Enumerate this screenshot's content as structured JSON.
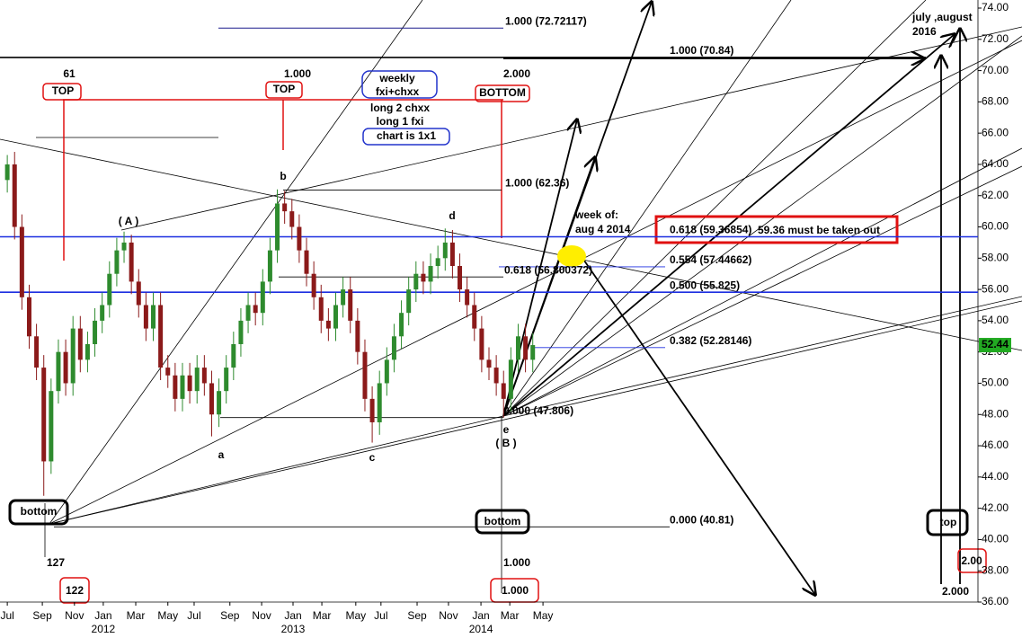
{
  "chart_data": {
    "type": "candlestick",
    "up_color": "#2e8b2e",
    "down_color": "#8b1a1a",
    "x": [
      2,
      4,
      6,
      8,
      10,
      12,
      14,
      16,
      18,
      20,
      22,
      24,
      26,
      28,
      30,
      32,
      34,
      36,
      38,
      40,
      42,
      44,
      46,
      48,
      50,
      52,
      54,
      56,
      58,
      60,
      62,
      64,
      66,
      68,
      70,
      72,
      74,
      76,
      78,
      80,
      82,
      84,
      86,
      88,
      90,
      92,
      94,
      96,
      98,
      100,
      102,
      104,
      106,
      108,
      110,
      112,
      114,
      116,
      118,
      120,
      122,
      124,
      126,
      128,
      130,
      132,
      134,
      136,
      138,
      140,
      142,
      144,
      146
    ],
    "open": [
      63.0,
      64.0,
      60.0,
      55.5,
      53.0,
      51.0,
      45.0,
      49.5,
      52.0,
      50.0,
      53.5,
      51.5,
      52.5,
      54.0,
      55.0,
      57.0,
      58.5,
      59.0,
      56.5,
      55.0,
      53.5,
      55.0,
      51.0,
      50.5,
      49.0,
      50.5,
      49.5,
      51.0,
      50.0,
      48.0,
      49.5,
      51.0,
      52.5,
      54.0,
      55.0,
      54.5,
      56.5,
      58.5,
      61.5,
      61.0,
      60.0,
      58.5,
      57.0,
      55.5,
      54.0,
      53.5,
      55.0,
      56.0,
      54.0,
      52.0,
      49.0,
      47.5,
      50.0,
      51.5,
      53.0,
      54.5,
      56.0,
      57.0,
      56.5,
      57.5,
      58.0,
      59.0,
      57.5,
      56.0,
      55.0,
      53.5,
      51.5,
      51.0,
      50.0,
      49.0,
      51.5,
      53.0,
      51.5
    ],
    "high": [
      64.6,
      64.8,
      60.8,
      56.3,
      53.8,
      51.8,
      50.3,
      52.8,
      52.8,
      54.3,
      54.3,
      53.3,
      54.8,
      55.8,
      57.8,
      59.3,
      59.7,
      59.5,
      57.3,
      55.8,
      55.8,
      55.8,
      51.8,
      51.3,
      51.3,
      51.3,
      51.8,
      51.8,
      50.8,
      50.3,
      51.8,
      53.3,
      54.8,
      55.8,
      55.8,
      57.3,
      59.3,
      62.4,
      62.3,
      61.8,
      60.8,
      59.3,
      57.8,
      56.3,
      54.8,
      55.8,
      56.8,
      56.8,
      54.8,
      52.8,
      49.8,
      50.8,
      52.3,
      53.8,
      55.3,
      56.8,
      57.8,
      57.8,
      58.3,
      58.8,
      59.9,
      59.8,
      58.3,
      56.8,
      55.8,
      54.3,
      52.3,
      51.8,
      50.8,
      52.3,
      53.8,
      53.8,
      53.2
    ],
    "low": [
      62.2,
      59.2,
      54.7,
      52.2,
      50.2,
      42.8,
      44.2,
      48.7,
      49.2,
      49.2,
      50.7,
      50.7,
      51.7,
      53.2,
      54.2,
      56.2,
      57.7,
      55.7,
      54.2,
      52.7,
      52.7,
      50.2,
      49.7,
      48.2,
      48.2,
      48.7,
      48.7,
      49.2,
      46.6,
      47.2,
      48.7,
      50.2,
      51.7,
      53.2,
      53.7,
      53.7,
      55.7,
      57.7,
      60.2,
      59.2,
      57.7,
      56.2,
      54.7,
      53.2,
      52.7,
      52.7,
      54.2,
      53.2,
      51.2,
      48.2,
      46.2,
      46.7,
      49.2,
      50.7,
      52.2,
      53.7,
      55.2,
      55.7,
      55.7,
      56.7,
      57.2,
      56.7,
      55.2,
      54.2,
      52.7,
      50.7,
      50.2,
      49.2,
      47.8,
      48.2,
      50.7,
      50.7,
      50.7
    ],
    "close": [
      64.0,
      60.0,
      55.5,
      53.0,
      51.0,
      45.0,
      49.5,
      52.0,
      50.0,
      53.5,
      51.5,
      52.5,
      54.0,
      55.0,
      57.0,
      58.5,
      59.0,
      56.5,
      55.0,
      53.5,
      55.0,
      51.0,
      50.5,
      49.0,
      50.5,
      49.5,
      51.0,
      50.0,
      48.0,
      49.5,
      51.0,
      52.5,
      54.0,
      55.0,
      54.5,
      56.5,
      58.5,
      61.5,
      61.0,
      60.0,
      58.5,
      57.0,
      55.5,
      54.0,
      53.5,
      55.0,
      56.0,
      54.0,
      52.0,
      49.0,
      47.5,
      50.0,
      51.5,
      53.0,
      54.5,
      56.0,
      57.0,
      56.5,
      57.5,
      58.0,
      59.0,
      57.5,
      56.0,
      55.0,
      53.5,
      51.5,
      51.0,
      50.0,
      49.0,
      51.5,
      53.0,
      51.5,
      52.44
    ],
    "xlim": [
      0,
      268
    ],
    "ylim": [
      36,
      74
    ],
    "xticks": [
      {
        "value": 2,
        "label": "Jul"
      },
      {
        "value": 11.6,
        "label": "Sep"
      },
      {
        "value": 20.4,
        "label": "Nov"
      },
      {
        "value": 28.3,
        "label": "Jan"
      },
      {
        "value": 37.2,
        "label": "Mar"
      },
      {
        "value": 46,
        "label": "May"
      },
      {
        "value": 53.2,
        "label": "Jul"
      },
      {
        "value": 63,
        "label": "Sep"
      },
      {
        "value": 71.7,
        "label": "Nov"
      },
      {
        "value": 80.3,
        "label": "Jan"
      },
      {
        "value": 88.2,
        "label": "Mar"
      },
      {
        "value": 97.5,
        "label": "May"
      },
      {
        "value": 104.4,
        "label": "Jul"
      },
      {
        "value": 114.3,
        "label": "Sep"
      },
      {
        "value": 122.9,
        "label": "Nov"
      },
      {
        "value": 131.8,
        "label": "Jan"
      },
      {
        "value": 139.7,
        "label": "Mar"
      },
      {
        "value": 148.8,
        "label": "May"
      }
    ],
    "x_year_labels": [
      {
        "value": 28.3,
        "label": "2012"
      },
      {
        "value": 80.3,
        "label": "2013"
      },
      {
        "value": 131.8,
        "label": "2014"
      }
    ],
    "yticks": [
      {
        "value": 36,
        "label": "36.00"
      },
      {
        "value": 38,
        "label": "38.00"
      },
      {
        "value": 40,
        "label": "40.00"
      },
      {
        "value": 42,
        "label": "42.00"
      },
      {
        "value": 44,
        "label": "44.00"
      },
      {
        "value": 46,
        "label": "46.00"
      },
      {
        "value": 48,
        "label": "48.00"
      },
      {
        "value": 50,
        "label": "50.00"
      },
      {
        "value": 52,
        "label": "52.00"
      },
      {
        "value": 54,
        "label": "54.00"
      },
      {
        "value": 56,
        "label": "56.00"
      },
      {
        "value": 58,
        "label": "58.00"
      },
      {
        "value": 60,
        "label": "60.00"
      },
      {
        "value": 62,
        "label": "62.00"
      },
      {
        "value": 64,
        "label": "64.00"
      },
      {
        "value": 66,
        "label": "66.00"
      },
      {
        "value": 68,
        "label": "68.00"
      },
      {
        "value": 70,
        "label": "70.00"
      },
      {
        "value": 72,
        "label": "72.00"
      },
      {
        "value": 74,
        "label": "74.00"
      }
    ],
    "last_price": 52.44,
    "last_price_color": "#22aa22",
    "levels": [
      {
        "value": 72.72117,
        "label": "1.000 (72.72117)",
        "color": "#1a1a8c",
        "line_color": "#1a1a8c"
      },
      {
        "value": 70.84,
        "label": "1.000 (70.84)",
        "color": "#000000",
        "line_color": "#000000"
      },
      {
        "value": 62.36,
        "label": "1.000 (62.36)",
        "color": "#000000",
        "line_color": "#000000"
      },
      {
        "value": 59.36854,
        "label": "0.618 (59.36854)",
        "color": "#1f8f1f",
        "line_color": "#1c2ee0"
      },
      {
        "value": 57.44662,
        "label": "0.554 (57.44662)",
        "color": "#1c2ee0",
        "line_color": "#1c2ee0"
      },
      {
        "value": 56.800372,
        "label": "0.618 (56.800372)",
        "color": "#1a1a8c",
        "line_color": "#000000"
      },
      {
        "value": 55.825,
        "label": "0.500 (55.825)",
        "color": "#7a1a6e",
        "line_color": "#1c2ee0"
      },
      {
        "value": 52.28146,
        "label": "0.382 (52.28146)",
        "color": "#1c2ee0",
        "line_color": "#1c2ee0"
      },
      {
        "value": 47.806,
        "label": "0.000 (47.806)",
        "color": "#000000",
        "line_color": "#000000"
      },
      {
        "value": 40.81,
        "label": "0.000 (40.81)",
        "color": "#000000",
        "line_color": "#000000"
      }
    ],
    "annotations": [
      "61",
      "TOP",
      "1.000",
      "TOP",
      "2.000",
      "BOTTOM",
      "weekly",
      "fxi+chxx",
      "long 2 chxx",
      "long 1 fxi",
      "chart is 1x1",
      "b",
      "( A )",
      "d",
      "week of:",
      "aug 4 2014",
      "59.36 must be taken out",
      "a",
      "c",
      "e",
      "( B )",
      "bottom",
      "127",
      "122",
      "bottom",
      "1.000",
      "1.000",
      "top",
      "2.00",
      "2.000",
      "july ,august",
      "2016"
    ]
  }
}
